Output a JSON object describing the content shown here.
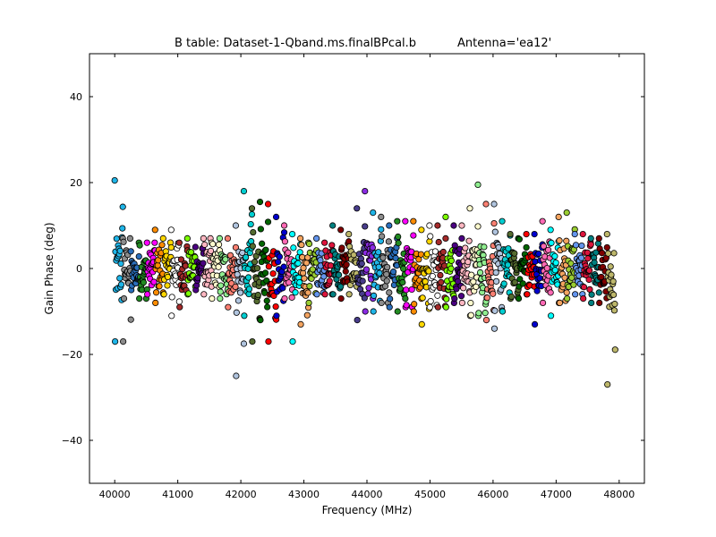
{
  "chart_data": {
    "type": "scatter",
    "title": "B table: Dataset-1-Qband.ms.finalBPcal.b",
    "subtitle": "Antenna='ea12'",
    "xlabel": "Frequency (MHz)",
    "ylabel": "Gain Phase (deg)",
    "xlim": [
      39600,
      48400
    ],
    "ylim": [
      -50,
      50
    ],
    "xticks": [
      40000,
      41000,
      42000,
      43000,
      44000,
      45000,
      46000,
      47000,
      48000
    ],
    "yticks": [
      -40,
      -20,
      0,
      20,
      40
    ],
    "ytick_labels": [
      "−40",
      "−20",
      "0",
      "20",
      "40"
    ],
    "grid": false,
    "legend": "none",
    "marker": "circle, black edge",
    "spw_width_mhz": 128,
    "spw_colors": [
      "#1fb5e8",
      "#8c8c8c",
      "#2a6ebb",
      "#228b22",
      "#ff00ff",
      "#ff8c00",
      "#ffd700",
      "#ffffff",
      "#a52a2a",
      "#7cfc00",
      "#4b0082",
      "#ffb6c1",
      "#fffacd",
      "#90ee90",
      "#fa8072",
      "#b0c4de",
      "#00ced1",
      "#556b2f",
      "#006400",
      "#ff0000",
      "#0000cd",
      "#ff69b4",
      "#00ffff",
      "#f4a460",
      "#9acd32",
      "#6495ed",
      "#dc143c",
      "#008080",
      "#800000",
      "#bdb76b",
      "#483d8b",
      "#8a2be2"
    ],
    "series": [
      {
        "x_start": 40000,
        "spread": 7,
        "offset": 0,
        "min": -17,
        "max": 20.5
      },
      {
        "x_start": 40128,
        "spread": 5,
        "offset": 0,
        "min": -17,
        "max": 7
      },
      {
        "x_start": 40256,
        "spread": 3,
        "offset": -1,
        "min": -5,
        "max": 4
      },
      {
        "x_start": 40384,
        "spread": 4,
        "offset": -1,
        "min": -7,
        "max": 6
      },
      {
        "x_start": 40512,
        "spread": 4,
        "offset": 0,
        "min": -6,
        "max": 6
      },
      {
        "x_start": 40640,
        "spread": 5,
        "offset": 0,
        "min": -8,
        "max": 9
      },
      {
        "x_start": 40768,
        "spread": 4,
        "offset": 0,
        "min": -6,
        "max": 7
      },
      {
        "x_start": 40896,
        "spread": 5,
        "offset": 0,
        "min": -11,
        "max": 9
      },
      {
        "x_start": 41024,
        "spread": 4,
        "offset": -1,
        "min": -9,
        "max": 6
      },
      {
        "x_start": 41152,
        "spread": 4,
        "offset": 0,
        "min": -6,
        "max": 7
      },
      {
        "x_start": 41280,
        "spread": 3,
        "offset": 0,
        "min": -5,
        "max": 5
      },
      {
        "x_start": 41408,
        "spread": 4,
        "offset": 0,
        "min": -6,
        "max": 7
      },
      {
        "x_start": 41536,
        "spread": 4,
        "offset": 0,
        "min": -7,
        "max": 6
      },
      {
        "x_start": 41664,
        "spread": 4,
        "offset": 0,
        "min": -7,
        "max": 7
      },
      {
        "x_start": 41792,
        "spread": 5,
        "offset": -1,
        "min": -9,
        "max": 7
      },
      {
        "x_start": 41920,
        "spread": 6,
        "offset": -2,
        "min": -25,
        "max": 10
      },
      {
        "x_start": 42048,
        "spread": 6,
        "offset": 0,
        "min": -11,
        "max": 18
      },
      {
        "x_start": 42176,
        "spread": 6,
        "offset": -2,
        "min": -17,
        "max": 14
      },
      {
        "x_start": 42304,
        "spread": 6,
        "offset": 0,
        "min": -12,
        "max": 15.5
      },
      {
        "x_start": 42432,
        "spread": 6,
        "offset": -1,
        "min": -17,
        "max": 15
      },
      {
        "x_start": 42560,
        "spread": 5,
        "offset": 0,
        "min": -11,
        "max": 12
      },
      {
        "x_start": 42688,
        "spread": 4,
        "offset": 0,
        "min": -7,
        "max": 10
      },
      {
        "x_start": 42816,
        "spread": 5,
        "offset": -2,
        "min": -17,
        "max": 8
      },
      {
        "x_start": 42944,
        "spread": 5,
        "offset": -2,
        "min": -13,
        "max": 7
      },
      {
        "x_start": 43072,
        "spread": 4,
        "offset": 0,
        "min": -8,
        "max": 6
      },
      {
        "x_start": 43200,
        "spread": 4,
        "offset": 0,
        "min": -6,
        "max": 7
      },
      {
        "x_start": 43328,
        "spread": 4,
        "offset": 0,
        "min": -6,
        "max": 6
      },
      {
        "x_start": 43456,
        "spread": 4,
        "offset": 0,
        "min": -6,
        "max": 10
      },
      {
        "x_start": 43584,
        "spread": 4,
        "offset": 0,
        "min": -7,
        "max": 9
      },
      {
        "x_start": 43712,
        "spread": 4,
        "offset": 0,
        "min": -6,
        "max": 8
      },
      {
        "x_start": 43840,
        "spread": 5,
        "offset": -1,
        "min": -12,
        "max": 14
      },
      {
        "x_start": 43968,
        "spread": 6,
        "offset": 0,
        "min": -10,
        "max": 18
      },
      {
        "x_start": 44096,
        "spread": 5,
        "offset": -1,
        "min": -10,
        "max": 13
      },
      {
        "x_start": 44224,
        "spread": 5,
        "offset": 0,
        "min": -8,
        "max": 12
      },
      {
        "x_start": 44352,
        "spread": 5,
        "offset": 0,
        "min": -9,
        "max": 10
      },
      {
        "x_start": 44480,
        "spread": 5,
        "offset": -1,
        "min": -10,
        "max": 11
      },
      {
        "x_start": 44608,
        "spread": 5,
        "offset": 0,
        "min": -9,
        "max": 11
      },
      {
        "x_start": 44736,
        "spread": 5,
        "offset": 0,
        "min": -10,
        "max": 11
      },
      {
        "x_start": 44864,
        "spread": 5,
        "offset": -1,
        "min": -13,
        "max": 9
      },
      {
        "x_start": 44992,
        "spread": 5,
        "offset": 0,
        "min": -9,
        "max": 10
      },
      {
        "x_start": 45120,
        "spread": 5,
        "offset": 0,
        "min": -9,
        "max": 10
      },
      {
        "x_start": 45248,
        "spread": 5,
        "offset": 0,
        "min": -9,
        "max": 12
      },
      {
        "x_start": 45376,
        "spread": 5,
        "offset": 0,
        "min": -8,
        "max": 10
      },
      {
        "x_start": 45504,
        "spread": 5,
        "offset": 0,
        "min": -8,
        "max": 10
      },
      {
        "x_start": 45632,
        "spread": 6,
        "offset": -1,
        "min": -11,
        "max": 14
      },
      {
        "x_start": 45760,
        "spread": 6,
        "offset": 0,
        "min": -11,
        "max": 19.5
      },
      {
        "x_start": 45888,
        "spread": 5,
        "offset": -1,
        "min": -12,
        "max": 15
      },
      {
        "x_start": 46016,
        "spread": 6,
        "offset": 0,
        "min": -14,
        "max": 15
      },
      {
        "x_start": 46144,
        "spread": 5,
        "offset": 0,
        "min": -10,
        "max": 11
      },
      {
        "x_start": 46272,
        "spread": 4,
        "offset": 0,
        "min": -7,
        "max": 8
      },
      {
        "x_start": 46400,
        "spread": 4,
        "offset": 0,
        "min": -7,
        "max": 7
      },
      {
        "x_start": 46528,
        "spread": 4,
        "offset": 0,
        "min": -6,
        "max": 8
      },
      {
        "x_start": 46656,
        "spread": 5,
        "offset": -1,
        "min": -13,
        "max": 8
      },
      {
        "x_start": 46784,
        "spread": 5,
        "offset": 0,
        "min": -8,
        "max": 11
      },
      {
        "x_start": 46912,
        "spread": 4,
        "offset": 0,
        "min": -11,
        "max": 9
      },
      {
        "x_start": 47040,
        "spread": 5,
        "offset": 0,
        "min": -8,
        "max": 12
      },
      {
        "x_start": 47168,
        "spread": 5,
        "offset": 0,
        "min": -7,
        "max": 13
      },
      {
        "x_start": 47296,
        "spread": 4,
        "offset": 0,
        "min": -6,
        "max": 8
      },
      {
        "x_start": 47424,
        "spread": 4,
        "offset": 0,
        "min": -7,
        "max": 8
      },
      {
        "x_start": 47552,
        "spread": 4,
        "offset": 0,
        "min": -8,
        "max": 7
      },
      {
        "x_start": 47680,
        "spread": 4,
        "offset": 0,
        "min": -8,
        "max": 7
      },
      {
        "x_start": 47808,
        "spread": 5,
        "offset": -4,
        "min": -27,
        "max": 8
      }
    ]
  }
}
